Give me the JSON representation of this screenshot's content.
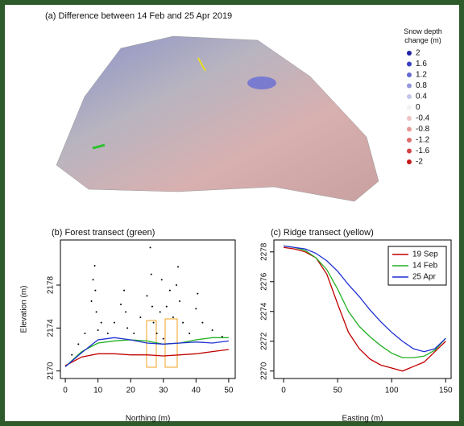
{
  "chart_data": [
    {
      "type": "surface",
      "title": "(a) Difference between 14 Feb and 25 Apr  2019",
      "legend_title": "Snow depth change (m)",
      "legend_values": [
        2,
        1.6,
        1.2,
        0.8,
        0.4,
        0,
        -0.4,
        -0.8,
        -1.2,
        -1.6,
        -2
      ],
      "legend_colors": [
        "#1f22a8",
        "#3a3fc0",
        "#6468d0",
        "#9497dc",
        "#c4c6ea",
        "#f2f2f2",
        "#f0c4c4",
        "#e89a9a",
        "#de6e6e",
        "#d24444",
        "#c41a1a"
      ]
    },
    {
      "type": "line",
      "title": "(b) Forest transect (green)",
      "x_label": "Northing (m)",
      "y_label": "Elevation (m)",
      "xlim": [
        -1.5,
        52
      ],
      "ylim": [
        2169.3,
        2182.2
      ],
      "xticks": [
        0,
        10,
        20,
        30,
        40,
        50
      ],
      "yticks": [
        2170,
        2174,
        2178
      ],
      "x": [
        0,
        5,
        10,
        15,
        20,
        25,
        30,
        35,
        40,
        45,
        50
      ],
      "series": [
        {
          "color": "#c00000",
          "values": [
            2170.5,
            2171.3,
            2171.6,
            2171.6,
            2171.5,
            2171.5,
            2171.4,
            2171.5,
            2171.6,
            2171.8,
            2172.0
          ]
        },
        {
          "color": "#22b022",
          "values": [
            2170.4,
            2171.8,
            2172.6,
            2172.8,
            2172.9,
            2172.8,
            2172.5,
            2172.6,
            2172.9,
            2173.1,
            2173.1
          ]
        },
        {
          "color": "#1f2fd0",
          "values": [
            2170.4,
            2171.7,
            2172.9,
            2173.1,
            2172.9,
            2172.6,
            2172.5,
            2172.6,
            2172.7,
            2172.6,
            2172.8
          ]
        }
      ],
      "points": {
        "color": "#000000",
        "x": [
          2,
          4,
          6,
          8,
          8.5,
          9,
          9.2,
          9.5,
          10,
          11,
          13,
          15,
          17,
          18,
          18.5,
          19,
          21,
          23,
          25,
          26,
          26.3,
          26.6,
          27,
          28,
          29,
          29.5,
          30,
          31,
          32,
          33,
          34,
          34.5,
          35,
          36,
          38,
          40,
          40.5,
          42,
          45,
          48
        ],
        "y": [
          2171.5,
          2172.5,
          2173.5,
          2176.5,
          2178.5,
          2179.8,
          2177.5,
          2175.5,
          2173.8,
          2174.5,
          2173.5,
          2174.5,
          2176.2,
          2177.5,
          2175.5,
          2174,
          2173.5,
          2175,
          2177,
          2181.5,
          2179,
          2176,
          2174.5,
          2173.5,
          2175.5,
          2178.5,
          2173,
          2176,
          2177.5,
          2175,
          2178,
          2179.7,
          2176.5,
          2174.5,
          2173.5,
          2175.8,
          2177.2,
          2174.5,
          2173.8,
          2173.2
        ]
      }
    },
    {
      "type": "line",
      "title": "(c) Ridge transect (yellow)",
      "x_label": "Easting (m)",
      "xlim": [
        -9,
        155
      ],
      "ylim": [
        2269.5,
        2278.8
      ],
      "xticks": [
        0,
        50,
        100,
        150
      ],
      "yticks": [
        2270,
        2272,
        2274,
        2276,
        2278
      ],
      "x": [
        0,
        10,
        20,
        30,
        40,
        50,
        60,
        70,
        80,
        90,
        100,
        110,
        120,
        130,
        140,
        150
      ],
      "series": [
        {
          "name": "19 Sep",
          "color": "#c00000",
          "values": [
            2278.3,
            2278.2,
            2278.0,
            2277.6,
            2276.5,
            2274.5,
            2272.6,
            2271.5,
            2270.8,
            2270.4,
            2270.2,
            2270.0,
            2270.3,
            2270.6,
            2271.3,
            2272.0
          ]
        },
        {
          "name": "14 Feb",
          "color": "#22b022",
          "values": [
            2278.4,
            2278.3,
            2278.1,
            2277.6,
            2276.8,
            2275.5,
            2274.0,
            2273.0,
            2272.3,
            2271.7,
            2271.2,
            2270.9,
            2270.9,
            2271.0,
            2271.4,
            2272.2
          ]
        },
        {
          "name": "25 Apr",
          "color": "#1f2fd0",
          "values": [
            2278.4,
            2278.3,
            2278.2,
            2277.9,
            2277.4,
            2276.7,
            2275.8,
            2275.0,
            2274.1,
            2273.3,
            2272.6,
            2272.0,
            2271.5,
            2271.3,
            2271.5,
            2272.2
          ]
        }
      ],
      "legend": "top-right"
    }
  ]
}
